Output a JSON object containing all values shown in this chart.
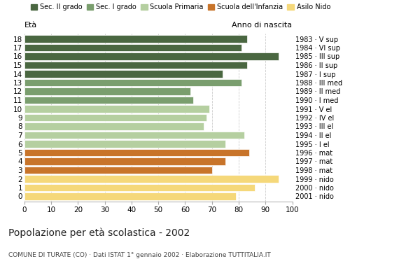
{
  "ages": [
    18,
    17,
    16,
    15,
    14,
    13,
    12,
    11,
    10,
    9,
    8,
    7,
    6,
    5,
    4,
    3,
    2,
    1,
    0
  ],
  "values": [
    83,
    81,
    95,
    83,
    74,
    81,
    62,
    63,
    69,
    68,
    67,
    82,
    75,
    84,
    75,
    70,
    95,
    86,
    79
  ],
  "anno_nascita": [
    "1983 · V sup",
    "1984 · VI sup",
    "1985 · III sup",
    "1986 · II sup",
    "1987 · I sup",
    "1988 · III med",
    "1989 · II med",
    "1990 · I med",
    "1991 · V el",
    "1992 · IV el",
    "1993 · III el",
    "1994 · II el",
    "1995 · I el",
    "1996 · mat",
    "1997 · mat",
    "1998 · mat",
    "1999 · nido",
    "2000 · nido",
    "2001 · nido"
  ],
  "colors": [
    "#4a6741",
    "#4a6741",
    "#4a6741",
    "#4a6741",
    "#4a6741",
    "#7a9e6e",
    "#7a9e6e",
    "#7a9e6e",
    "#b5cfa0",
    "#b5cfa0",
    "#b5cfa0",
    "#b5cfa0",
    "#b5cfa0",
    "#c8742a",
    "#c8742a",
    "#c8742a",
    "#f5d87a",
    "#f5d87a",
    "#f5d87a"
  ],
  "legend_labels": [
    "Sec. II grado",
    "Sec. I grado",
    "Scuola Primaria",
    "Scuola dell'Infanzia",
    "Asilo Nido"
  ],
  "legend_colors": [
    "#4a6741",
    "#7a9e6e",
    "#b5cfa0",
    "#c8742a",
    "#f5d87a"
  ],
  "title": "Popolazione per età scolastica - 2002",
  "subtitle": "COMUNE DI TURATE (CO) · Dati ISTAT 1° gennaio 2002 · Elaborazione TUTTITALIA.IT",
  "xlabel_left": "Età",
  "xlabel_right": "Anno di nascita",
  "xlim": [
    0,
    100
  ],
  "xticks": [
    0,
    10,
    20,
    30,
    40,
    50,
    60,
    70,
    80,
    90,
    100
  ],
  "background_color": "#ffffff",
  "grid_color": "#cccccc"
}
